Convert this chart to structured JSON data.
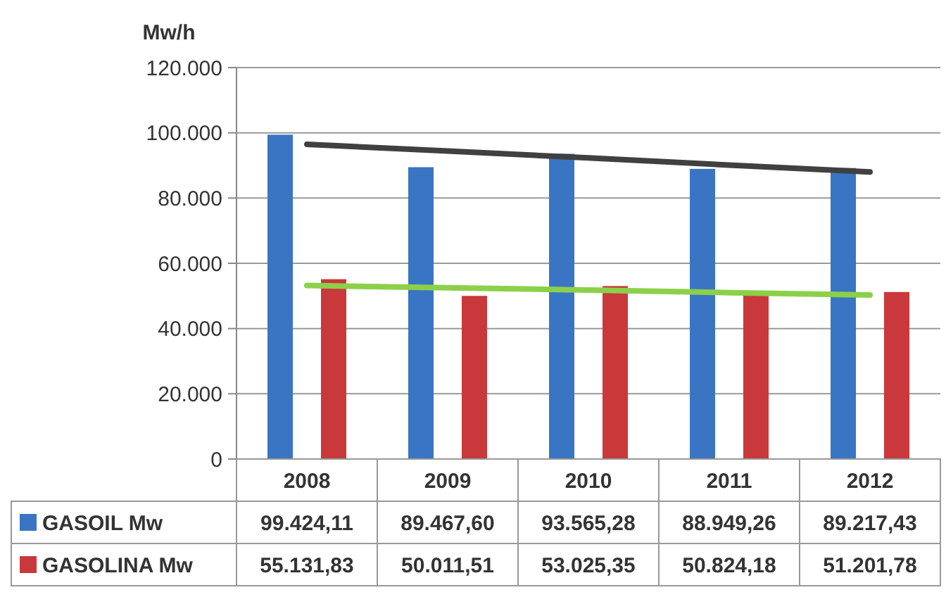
{
  "chart_data": {
    "type": "bar",
    "ylabel": "Mw/h",
    "categories": [
      "2008",
      "2009",
      "2010",
      "2011",
      "2012"
    ],
    "series": [
      {
        "name": "GASOIL Mw",
        "color": "#3a75c4",
        "values": [
          99424.11,
          89467.6,
          93565.28,
          88949.26,
          89217.43
        ],
        "value_labels": [
          "99.424,11",
          "89.467,60",
          "93.565,28",
          "88.949,26",
          "89.217,43"
        ]
      },
      {
        "name": "GASOLINA Mw",
        "color": "#c9383a",
        "values": [
          55131.83,
          50011.51,
          53025.35,
          50824.18,
          51201.78
        ],
        "value_labels": [
          "55.131,83",
          "50.011,51",
          "53.025,35",
          "50.824,18",
          "51.201,78"
        ]
      },
      {
        "type": "line",
        "color": "#404040",
        "values": [
          96500,
          94400,
          92300,
          90100,
          88000
        ]
      },
      {
        "type": "line",
        "color": "#8cd04a",
        "values": [
          53200,
          52500,
          51800,
          51000,
          50300
        ]
      }
    ],
    "ylim": [
      0,
      120000
    ],
    "yticks": [
      {
        "value": 0,
        "label": "0"
      },
      {
        "value": 20000,
        "label": "20.000"
      },
      {
        "value": 40000,
        "label": "40.000"
      },
      {
        "value": 60000,
        "label": "60.000"
      },
      {
        "value": 80000,
        "label": "80.000"
      },
      {
        "value": 100000,
        "label": "100.000"
      },
      {
        "value": 120000,
        "label": "120.000"
      }
    ],
    "grid": "y",
    "legend": "bottom"
  }
}
